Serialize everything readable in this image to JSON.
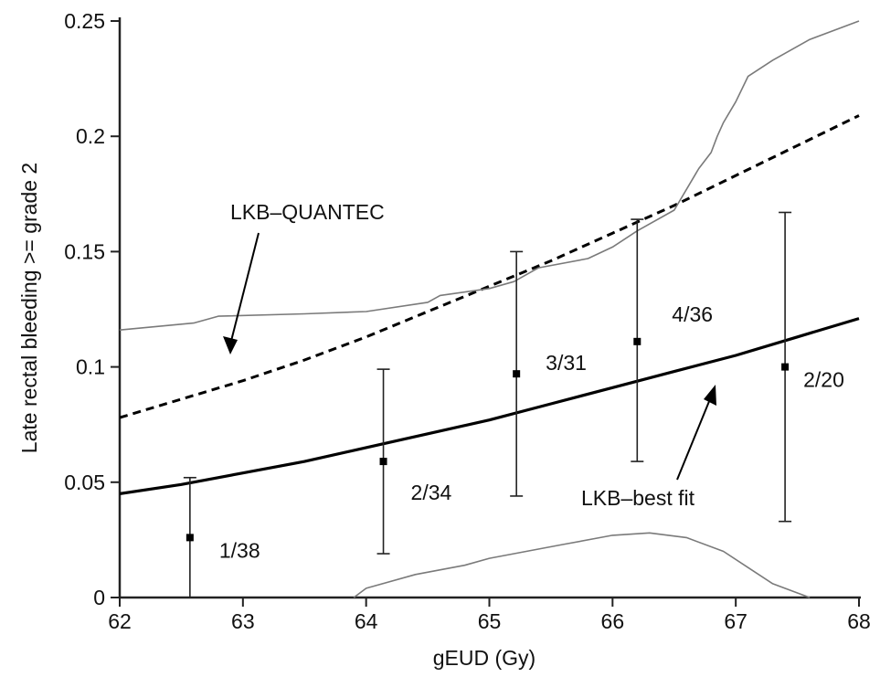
{
  "chart_data": {
    "type": "line",
    "xlabel": "gEUD (Gy)",
    "ylabel": "Late rectal bleeding >= grade 2",
    "xlim": [
      62,
      68
    ],
    "ylim": [
      0,
      0.25
    ],
    "x_ticks": [
      62,
      63,
      64,
      65,
      66,
      67,
      68
    ],
    "x_tick_labels": [
      "62",
      "63",
      "64",
      "65",
      "66",
      "67",
      "68"
    ],
    "y_ticks": [
      0,
      0.05,
      0.1,
      0.15,
      0.2,
      0.25
    ],
    "y_tick_labels": [
      "0",
      "0.05",
      "0.1",
      "0.15",
      "0.2",
      "0.25"
    ],
    "grid": false,
    "series": [
      {
        "name": "LKB–QUANTEC",
        "style": "dashed",
        "color": "#000000",
        "x": [
          62,
          62.5,
          63,
          63.5,
          64,
          64.5,
          65,
          65.5,
          66,
          66.5,
          67,
          67.5,
          68
        ],
        "y": [
          0.078,
          0.086,
          0.094,
          0.103,
          0.113,
          0.124,
          0.135,
          0.146,
          0.158,
          0.17,
          0.183,
          0.196,
          0.209
        ]
      },
      {
        "name": "LKB–best fit",
        "style": "solid-thick",
        "color": "#000000",
        "x": [
          62,
          62.5,
          63,
          63.5,
          64,
          64.5,
          65,
          65.5,
          66,
          66.5,
          67,
          67.5,
          68
        ],
        "y": [
          0.045,
          0.049,
          0.054,
          0.059,
          0.065,
          0.071,
          0.077,
          0.084,
          0.091,
          0.098,
          0.105,
          0.113,
          0.121
        ]
      },
      {
        "style": "thin-upper-band",
        "color": "#7a7a7a",
        "x": [
          62,
          62.6,
          62.8,
          63.5,
          64.0,
          64.5,
          64.6,
          65.0,
          65.2,
          65.4,
          65.8,
          66.0,
          66.2,
          66.5,
          66.7,
          66.8,
          66.85,
          66.9,
          67.0,
          67.1,
          67.3,
          67.6,
          68.0
        ],
        "y": [
          0.116,
          0.119,
          0.122,
          0.123,
          0.124,
          0.128,
          0.131,
          0.134,
          0.137,
          0.143,
          0.147,
          0.152,
          0.159,
          0.168,
          0.186,
          0.193,
          0.2,
          0.206,
          0.215,
          0.226,
          0.233,
          0.242,
          0.25
        ]
      },
      {
        "style": "thin-lower-band",
        "color": "#7a7a7a",
        "x": [
          63.9,
          64.0,
          64.4,
          64.8,
          65.0,
          65.3,
          65.6,
          65.9,
          66.0,
          66.3,
          66.6,
          66.9,
          67.1,
          67.3,
          67.5,
          67.6
        ],
        "y": [
          0.0,
          0.004,
          0.01,
          0.014,
          0.017,
          0.02,
          0.023,
          0.026,
          0.027,
          0.028,
          0.026,
          0.02,
          0.013,
          0.006,
          0.002,
          0.0
        ]
      }
    ],
    "points": [
      {
        "x": 62.57,
        "y": 0.026,
        "low": 0.0,
        "high": 0.052,
        "label": "1/38"
      },
      {
        "x": 64.14,
        "y": 0.059,
        "low": 0.019,
        "high": 0.099,
        "label": "2/34"
      },
      {
        "x": 65.22,
        "y": 0.097,
        "low": 0.044,
        "high": 0.15,
        "label": "3/31"
      },
      {
        "x": 66.2,
        "y": 0.111,
        "low": 0.059,
        "high": 0.164,
        "label": "4/36"
      },
      {
        "x": 67.4,
        "y": 0.1,
        "low": 0.033,
        "high": 0.167,
        "label": "2/20"
      }
    ],
    "annotations": [
      {
        "text": "LKB–QUANTEC"
      },
      {
        "text": "LKB–best fit"
      }
    ]
  }
}
